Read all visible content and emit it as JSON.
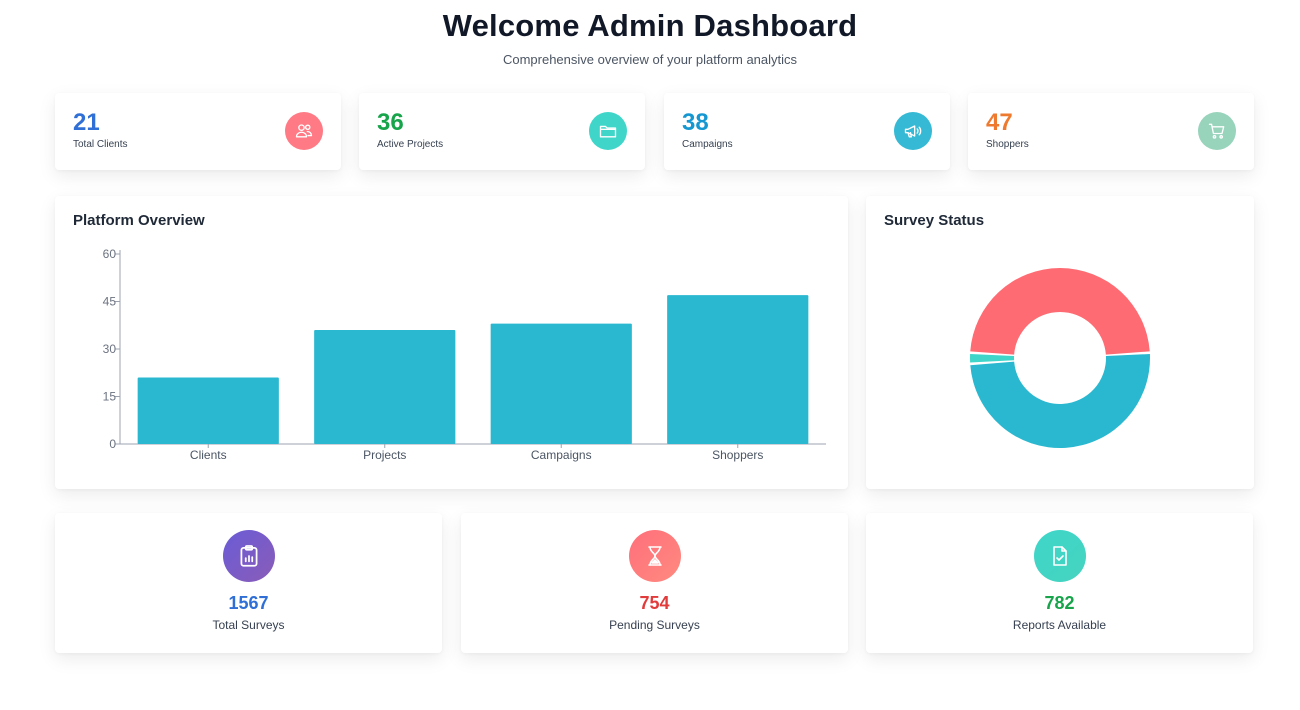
{
  "header": {
    "title": "Welcome Admin Dashboard",
    "subtitle": "Comprehensive overview of your platform analytics"
  },
  "stats": [
    {
      "value": "21",
      "label": "Total Clients",
      "color": "#2f6fd6",
      "icon": "users-icon",
      "icon_bg": "#ff7a85"
    },
    {
      "value": "36",
      "label": "Active Projects",
      "color": "#17a44a",
      "icon": "folder-icon",
      "icon_bg": "#3fd6c9"
    },
    {
      "value": "38",
      "label": "Campaigns",
      "color": "#1597d2",
      "icon": "megaphone-icon",
      "icon_bg": "#35b9d4"
    },
    {
      "value": "47",
      "label": "Shoppers",
      "color": "#ee7a2f",
      "icon": "cart-icon",
      "icon_bg": "#98d3bb"
    }
  ],
  "overview": {
    "title": "Platform Overview"
  },
  "survey_status": {
    "title": "Survey Status"
  },
  "summary": [
    {
      "value": "1567",
      "label": "Total Surveys",
      "color": "#2f6fd6",
      "icon": "clipboard-chart-icon",
      "icon_bg": "#7b5cc4"
    },
    {
      "value": "754",
      "label": "Pending Surveys",
      "color": "#e23b3b",
      "icon": "hourglass-icon",
      "icon_bg": "#ff7a7a"
    },
    {
      "value": "782",
      "label": "Reports Available",
      "color": "#17a44a",
      "icon": "file-check-icon",
      "icon_bg": "#3fd6c9"
    }
  ],
  "chart_data": [
    {
      "type": "bar",
      "categories": [
        "Clients",
        "Projects",
        "Campaigns",
        "Shoppers"
      ],
      "values": [
        21,
        36,
        38,
        47
      ],
      "ylim": [
        0,
        60
      ],
      "yticks": [
        0,
        15,
        30,
        45,
        60
      ],
      "title": "Platform Overview",
      "xlabel": "",
      "ylabel": "",
      "bar_color": "#29b8cf",
      "grid": false,
      "legend": "none"
    },
    {
      "type": "pie",
      "donut": true,
      "values": [
        754,
        782,
        31
      ],
      "colors": [
        "#ff6b72",
        "#29b8cf",
        "#3fd6c9"
      ],
      "title": "Survey Status",
      "legend": "none"
    }
  ]
}
